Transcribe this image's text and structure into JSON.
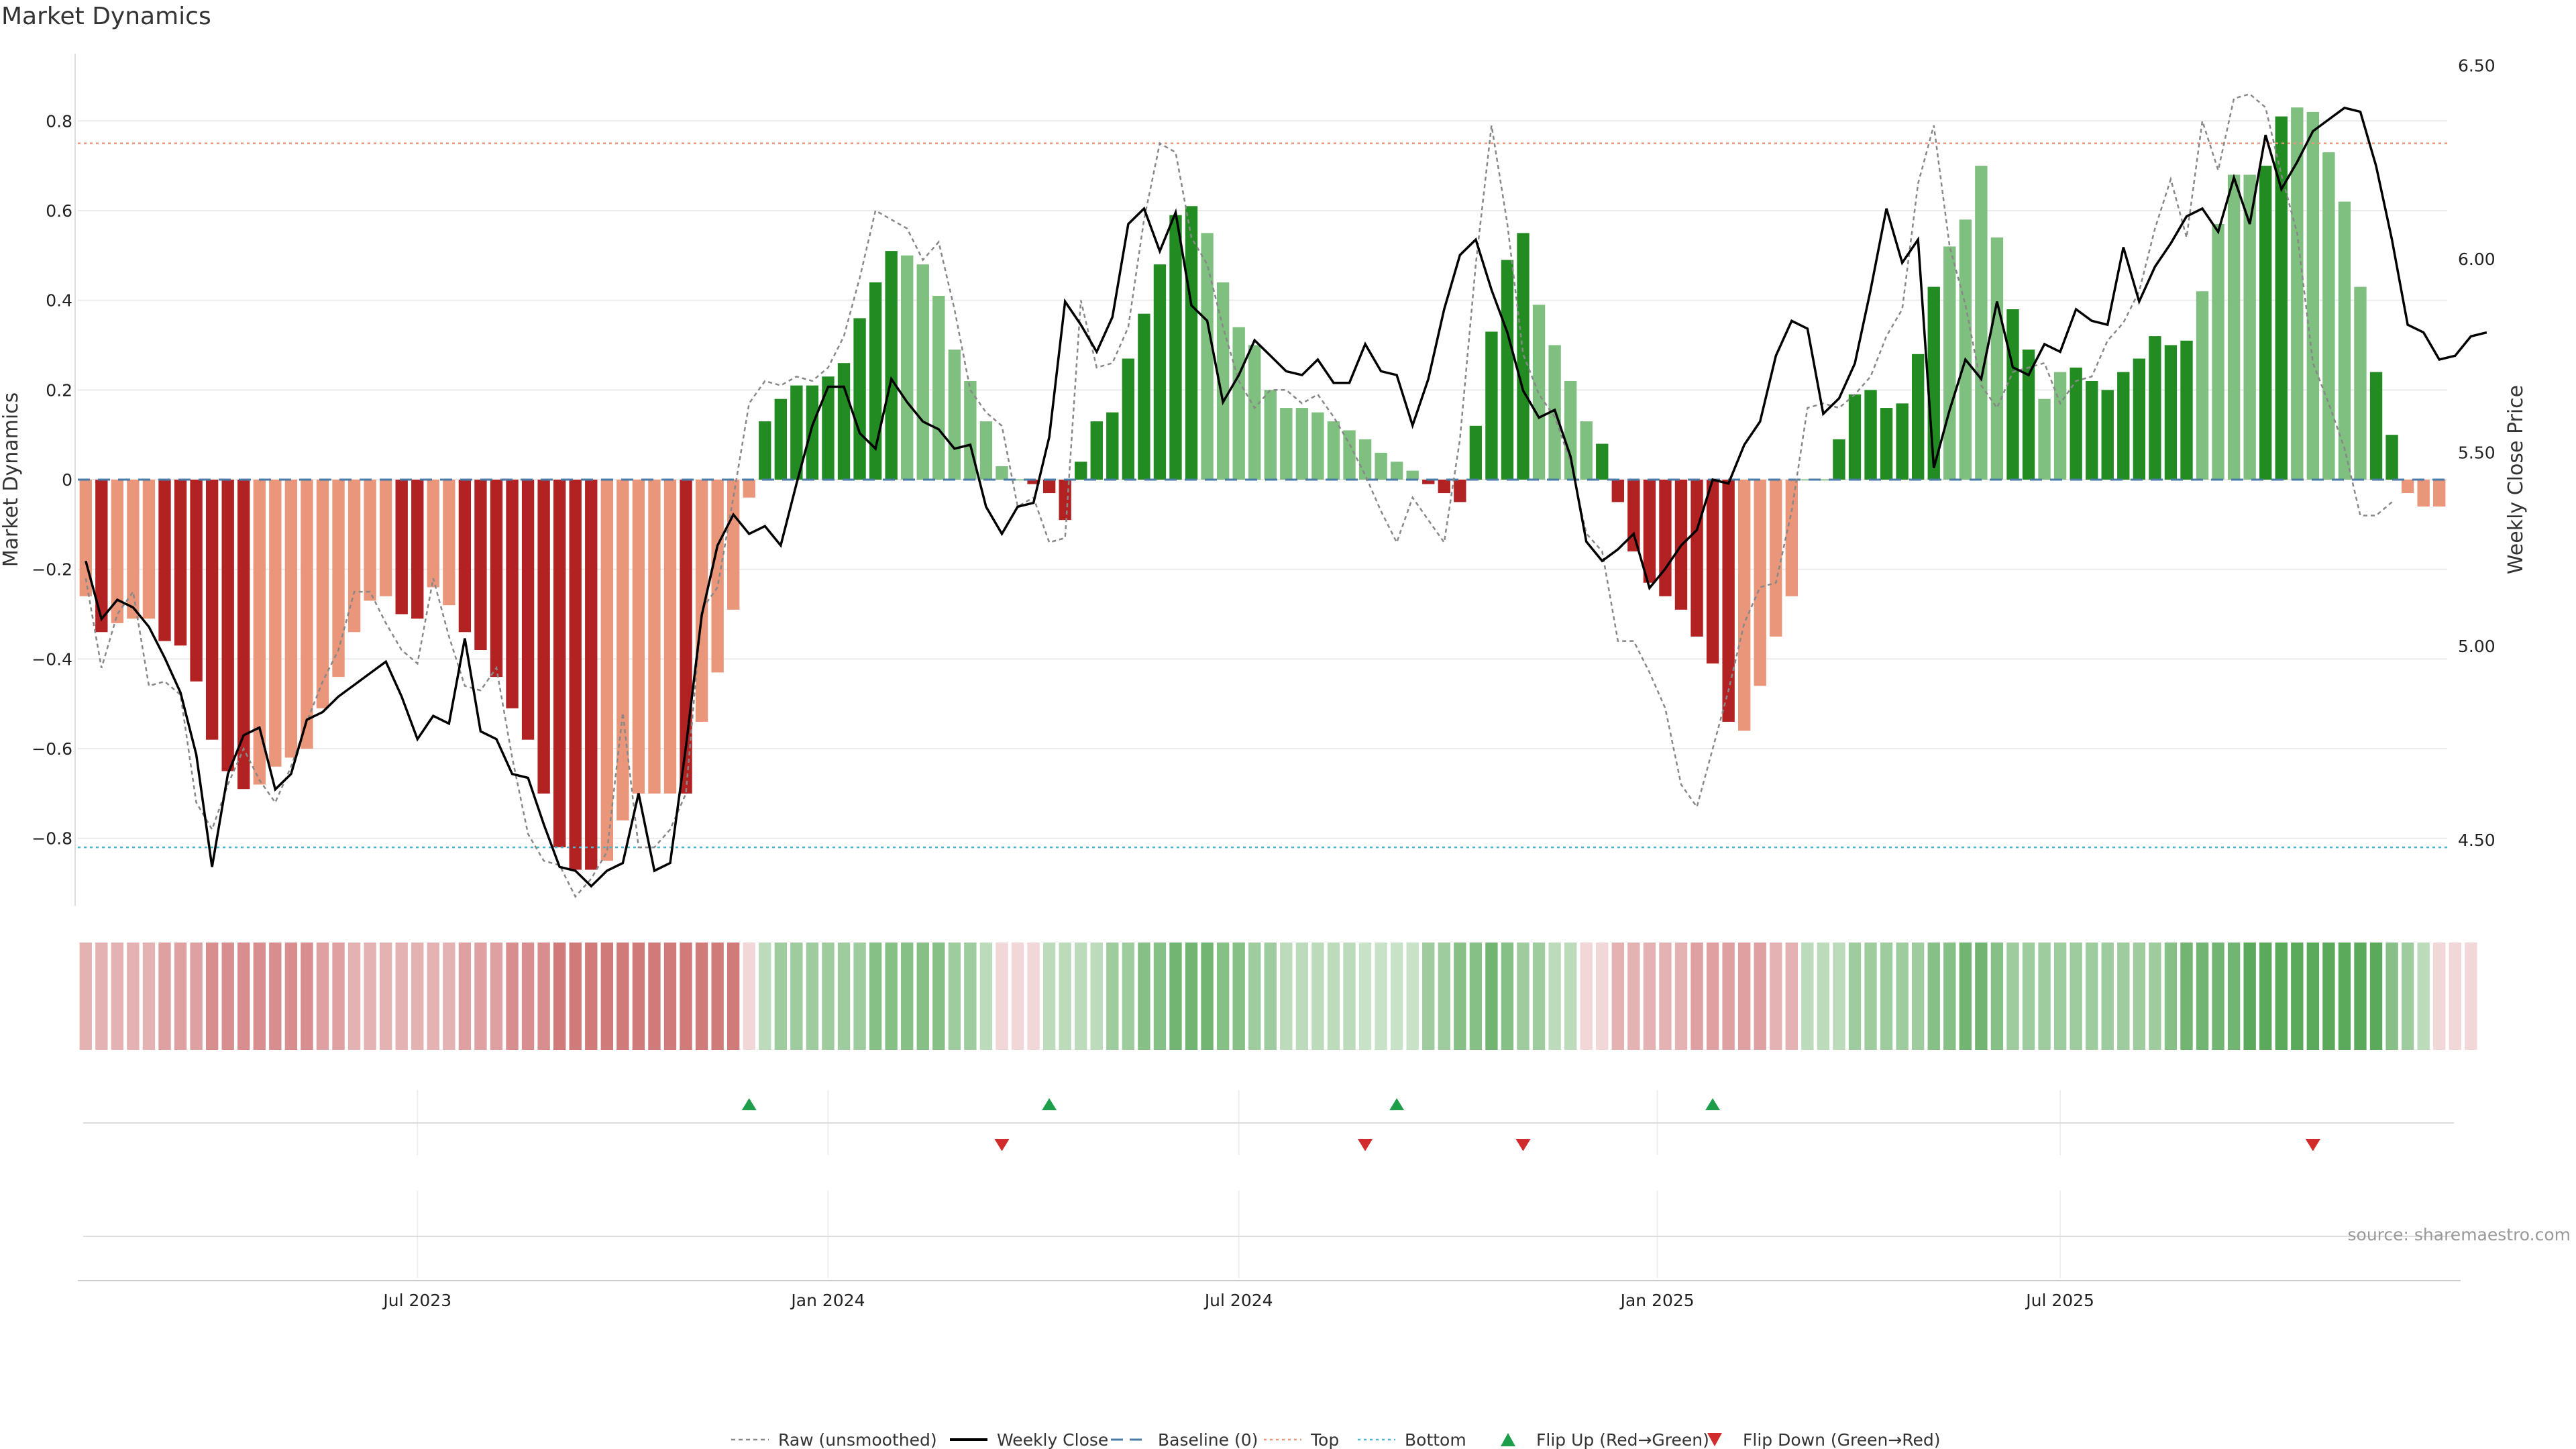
{
  "title": "Market Dynamics",
  "source": "source: sharemaestro.com",
  "colors": {
    "strong_green": "#228B22",
    "light_green": "#7FBF7F",
    "strong_red": "#B22222",
    "light_red": "#E9967A",
    "close_line": "#000000",
    "raw_line": "#888888",
    "baseline": "#4A7BA7",
    "top": "#E9967A",
    "bottom": "#4CB5C9",
    "flip_up": "#1E9E4A",
    "flip_down": "#D12B2B",
    "grid": "#EBEBEB"
  },
  "chart_data": {
    "type": "bar",
    "title": "Market Dynamics",
    "ylabel": "Market Dynamics",
    "y2label": "Weekly Close Price",
    "ylim": [
      -0.95,
      0.95
    ],
    "y2lim": [
      4.33,
      6.53
    ],
    "yticks": [
      -0.8,
      -0.6,
      -0.4,
      -0.2,
      0,
      0.2,
      0.4,
      0.6,
      0.8
    ],
    "yticklabels": [
      "−0.8",
      "−0.6",
      "−0.4",
      "−0.2",
      "0",
      "0.2",
      "0.4",
      "0.6",
      "0.8"
    ],
    "y2ticks": [
      4.5,
      5.0,
      5.5,
      6.0,
      6.5
    ],
    "y2ticklabels": [
      "4.50",
      "5.00",
      "5.50",
      "6.00",
      "6.50"
    ],
    "xticks": [
      {
        "index": 21,
        "label": "Jul 2023"
      },
      {
        "index": 47,
        "label": "Jan 2024"
      },
      {
        "index": 73,
        "label": "Jul 2024"
      },
      {
        "index": 99.5,
        "label": "Jan 2025"
      },
      {
        "index": 125,
        "label": "Jul 2025"
      }
    ],
    "first_week": "2023-02-06",
    "frequency": "weekly",
    "top_line": 0.75,
    "bottom_line": -0.82,
    "baseline": 0,
    "grid": true,
    "legend_position": "bottom",
    "values": [
      -0.26,
      -0.34,
      -0.32,
      -0.31,
      -0.31,
      -0.36,
      -0.37,
      -0.45,
      -0.58,
      -0.65,
      -0.69,
      -0.68,
      -0.64,
      -0.62,
      -0.6,
      -0.51,
      -0.44,
      -0.34,
      -0.27,
      -0.26,
      -0.3,
      -0.31,
      -0.24,
      -0.28,
      -0.34,
      -0.38,
      -0.44,
      -0.51,
      -0.58,
      -0.7,
      -0.82,
      -0.87,
      -0.87,
      -0.85,
      -0.76,
      -0.7,
      -0.7,
      -0.7,
      -0.7,
      -0.54,
      -0.43,
      -0.29,
      -0.04,
      0.13,
      0.18,
      0.21,
      0.21,
      0.23,
      0.26,
      0.36,
      0.44,
      0.51,
      0.5,
      0.48,
      0.41,
      0.29,
      0.22,
      0.13,
      0.03,
      0.0,
      -0.01,
      -0.03,
      -0.09,
      0.04,
      0.13,
      0.15,
      0.27,
      0.37,
      0.48,
      0.59,
      0.61,
      0.55,
      0.44,
      0.34,
      0.3,
      0.2,
      0.16,
      0.16,
      0.15,
      0.13,
      0.11,
      0.09,
      0.06,
      0.04,
      0.02,
      -0.01,
      -0.03,
      -0.05,
      0.12,
      0.33,
      0.49,
      0.55,
      0.39,
      0.3,
      0.22,
      0.13,
      0.08,
      -0.05,
      -0.16,
      -0.23,
      -0.26,
      -0.29,
      -0.35,
      -0.41,
      -0.54,
      -0.56,
      -0.46,
      -0.35,
      -0.26,
      0.0,
      0.0,
      0.09,
      0.19,
      0.2,
      0.16,
      0.17,
      0.28,
      0.43,
      0.52,
      0.58,
      0.7,
      0.54,
      0.38,
      0.29,
      0.18,
      0.24,
      0.25,
      0.22,
      0.2,
      0.24,
      0.27,
      0.32,
      0.3,
      0.31,
      0.42,
      0.57,
      0.68,
      0.68,
      0.7,
      0.81,
      0.83,
      0.82,
      0.73,
      0.62,
      0.43,
      0.24,
      0.1,
      -0.03,
      -0.06,
      -0.06
    ],
    "bar_intensity": [
      "light",
      "strong",
      "light",
      "light",
      "light",
      "strong",
      "strong",
      "strong",
      "strong",
      "strong",
      "strong",
      "light",
      "light",
      "light",
      "light",
      "light",
      "light",
      "light",
      "light",
      "light",
      "strong",
      "strong",
      "light",
      "light",
      "strong",
      "strong",
      "strong",
      "strong",
      "strong",
      "strong",
      "strong",
      "strong",
      "strong",
      "light",
      "light",
      "light",
      "light",
      "light",
      "strong",
      "light",
      "light",
      "light",
      "light",
      "strong",
      "strong",
      "strong",
      "strong",
      "strong",
      "strong",
      "strong",
      "strong",
      "strong",
      "light",
      "light",
      "light",
      "light",
      "light",
      "light",
      "light",
      "strong",
      "strong",
      "strong",
      "strong",
      "strong",
      "strong",
      "strong",
      "strong",
      "strong",
      "strong",
      "strong",
      "strong",
      "light",
      "light",
      "light",
      "light",
      "light",
      "light",
      "light",
      "light",
      "light",
      "light",
      "light",
      "light",
      "light",
      "light",
      "strong",
      "strong",
      "strong",
      "strong",
      "strong",
      "strong",
      "strong",
      "light",
      "light",
      "light",
      "light",
      "strong",
      "strong",
      "strong",
      "strong",
      "strong",
      "strong",
      "strong",
      "strong",
      "strong",
      "light",
      "light",
      "light",
      "light",
      "strong",
      "strong",
      "strong",
      "strong",
      "strong",
      "strong",
      "strong",
      "strong",
      "strong",
      "light",
      "light",
      "light",
      "light",
      "strong",
      "strong",
      "light",
      "light",
      "strong",
      "strong",
      "strong",
      "strong",
      "strong",
      "strong",
      "strong",
      "strong",
      "light",
      "light",
      "light",
      "light",
      "strong",
      "strong",
      "light",
      "light",
      "light",
      "light",
      "light",
      "strong",
      "strong",
      "light"
    ],
    "raw_values": [
      -0.22,
      -0.42,
      -0.3,
      -0.25,
      -0.46,
      -0.45,
      -0.48,
      -0.72,
      -0.78,
      -0.68,
      -0.6,
      -0.67,
      -0.72,
      -0.64,
      -0.54,
      -0.45,
      -0.38,
      -0.25,
      -0.25,
      -0.32,
      -0.38,
      -0.41,
      -0.22,
      -0.35,
      -0.46,
      -0.47,
      -0.42,
      -0.62,
      -0.79,
      -0.85,
      -0.86,
      -0.93,
      -0.89,
      -0.83,
      -0.52,
      -0.82,
      -0.82,
      -0.78,
      -0.7,
      -0.29,
      -0.24,
      -0.04,
      0.17,
      0.22,
      0.21,
      0.23,
      0.22,
      0.25,
      0.32,
      0.45,
      0.6,
      0.58,
      0.56,
      0.49,
      0.53,
      0.38,
      0.2,
      0.15,
      0.12,
      -0.06,
      -0.04,
      -0.14,
      -0.13,
      0.4,
      0.25,
      0.26,
      0.34,
      0.58,
      0.75,
      0.73,
      0.54,
      0.48,
      0.34,
      0.22,
      0.16,
      0.2,
      0.2,
      0.17,
      0.19,
      0.14,
      0.08,
      0.01,
      -0.07,
      -0.14,
      -0.04,
      -0.09,
      -0.14,
      0.09,
      0.48,
      0.79,
      0.57,
      0.28,
      0.19,
      0.14,
      0.04,
      -0.12,
      -0.16,
      -0.36,
      -0.36,
      -0.43,
      -0.51,
      -0.68,
      -0.73,
      -0.6,
      -0.47,
      -0.32,
      -0.24,
      -0.23,
      -0.07,
      0.16,
      0.17,
      0.16,
      0.19,
      0.23,
      0.32,
      0.38,
      0.66,
      0.79,
      0.52,
      0.39,
      0.21,
      0.16,
      0.24,
      0.25,
      0.26,
      0.17,
      0.22,
      0.23,
      0.31,
      0.35,
      0.42,
      0.56,
      0.67,
      0.54,
      0.8,
      0.69,
      0.85,
      0.86,
      0.83,
      0.68,
      0.55,
      0.26,
      0.17,
      0.07,
      -0.08,
      -0.08,
      -0.05
    ],
    "close_values": [
      5.22,
      5.07,
      5.12,
      5.1,
      5.05,
      4.97,
      4.88,
      4.72,
      4.43,
      4.67,
      4.77,
      4.79,
      4.63,
      4.67,
      4.81,
      4.83,
      4.87,
      4.9,
      4.93,
      4.96,
      4.87,
      4.76,
      4.82,
      4.8,
      5.02,
      4.78,
      4.76,
      4.67,
      4.66,
      4.54,
      4.43,
      4.42,
      4.38,
      4.42,
      4.44,
      4.62,
      4.42,
      4.44,
      4.74,
      5.08,
      5.26,
      5.34,
      5.29,
      5.31,
      5.26,
      5.42,
      5.57,
      5.67,
      5.67,
      5.55,
      5.51,
      5.69,
      5.63,
      5.58,
      5.56,
      5.51,
      5.52,
      5.36,
      5.29,
      5.36,
      5.37,
      5.54,
      5.89,
      5.83,
      5.76,
      5.85,
      6.09,
      6.13,
      6.02,
      6.12,
      5.88,
      5.84,
      5.63,
      5.7,
      5.79,
      5.75,
      5.71,
      5.7,
      5.74,
      5.68,
      5.68,
      5.78,
      5.71,
      5.7,
      5.57,
      5.69,
      5.87,
      6.01,
      6.05,
      5.92,
      5.81,
      5.66,
      5.59,
      5.61,
      5.49,
      5.27,
      5.22,
      5.25,
      5.29,
      5.15,
      5.2,
      5.26,
      5.3,
      5.43,
      5.42,
      5.52,
      5.58,
      5.75,
      5.84,
      5.82,
      5.6,
      5.64,
      5.73,
      5.92,
      6.13,
      5.99,
      6.05,
      5.46,
      5.61,
      5.74,
      5.69,
      5.89,
      5.72,
      5.7,
      5.78,
      5.76,
      5.87,
      5.84,
      5.83,
      6.03,
      5.89,
      5.98,
      6.04,
      6.11,
      6.13,
      6.07,
      6.21,
      6.09,
      6.32,
      6.18,
      6.25,
      6.33,
      6.36,
      6.39,
      6.38,
      6.24,
      6.05,
      5.83,
      5.81,
      5.74,
      5.75,
      5.8,
      5.81
    ],
    "heatmap_strip": [
      -0.45,
      -0.45,
      -0.45,
      -0.45,
      -0.45,
      -0.6,
      -0.6,
      -0.6,
      -0.75,
      -0.75,
      -0.75,
      -0.75,
      -0.75,
      -0.75,
      -0.75,
      -0.6,
      -0.6,
      -0.45,
      -0.45,
      -0.45,
      -0.45,
      -0.45,
      -0.45,
      -0.45,
      -0.6,
      -0.6,
      -0.6,
      -0.75,
      -0.75,
      -0.75,
      -0.9,
      -0.9,
      -0.9,
      -0.9,
      -0.9,
      -0.9,
      -0.9,
      -0.9,
      -0.9,
      -0.9,
      -0.9,
      -0.9,
      -0.15,
      0.25,
      0.45,
      0.45,
      0.45,
      0.45,
      0.45,
      0.45,
      0.6,
      0.6,
      0.6,
      0.6,
      0.6,
      0.45,
      0.45,
      0.25,
      -0.15,
      -0.15,
      -0.15,
      0.25,
      0.25,
      0.25,
      0.25,
      0.45,
      0.45,
      0.6,
      0.6,
      0.75,
      0.75,
      0.75,
      0.6,
      0.6,
      0.45,
      0.45,
      0.25,
      0.25,
      0.25,
      0.25,
      0.25,
      0.15,
      0.15,
      0.15,
      0.15,
      0.45,
      0.45,
      0.6,
      0.6,
      0.75,
      0.6,
      0.45,
      0.45,
      0.25,
      0.25,
      -0.15,
      -0.15,
      -0.45,
      -0.45,
      -0.45,
      -0.45,
      -0.45,
      -0.6,
      -0.6,
      -0.6,
      -0.6,
      -0.6,
      -0.45,
      -0.45,
      0.25,
      0.25,
      0.25,
      0.45,
      0.45,
      0.45,
      0.45,
      0.45,
      0.6,
      0.6,
      0.75,
      0.75,
      0.6,
      0.45,
      0.45,
      0.45,
      0.45,
      0.45,
      0.45,
      0.45,
      0.45,
      0.45,
      0.45,
      0.6,
      0.75,
      0.75,
      0.75,
      0.75,
      0.9,
      0.9,
      0.9,
      0.9,
      0.9,
      0.9,
      0.9,
      0.9,
      0.9,
      0.6,
      0.45,
      0.25,
      -0.15,
      -0.15,
      -0.15
    ],
    "flip_up_indices": [
      42,
      61,
      83,
      103
    ],
    "flip_down_indices": [
      58,
      81,
      91,
      141
    ],
    "legend": [
      {
        "label": "Raw (unsmoothed)",
        "style": "raw"
      },
      {
        "label": "Weekly Close",
        "style": "close"
      },
      {
        "label": "Baseline (0)",
        "style": "baseline"
      },
      {
        "label": "Top",
        "style": "top"
      },
      {
        "label": "Bottom",
        "style": "bottom"
      },
      {
        "label": "Flip Up (Red→Green)",
        "style": "flip_up"
      },
      {
        "label": "Flip Down (Green→Red)",
        "style": "flip_down"
      }
    ]
  }
}
